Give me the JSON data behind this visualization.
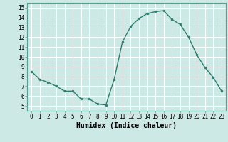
{
  "x": [
    0,
    1,
    2,
    3,
    4,
    5,
    6,
    7,
    8,
    9,
    10,
    11,
    12,
    13,
    14,
    15,
    16,
    17,
    18,
    19,
    20,
    21,
    22,
    23
  ],
  "y": [
    8.5,
    7.7,
    7.4,
    7.0,
    6.5,
    6.5,
    5.7,
    5.7,
    5.2,
    5.1,
    7.7,
    11.5,
    13.1,
    13.9,
    14.4,
    14.6,
    14.7,
    13.8,
    13.3,
    12.0,
    10.2,
    8.9,
    7.9,
    6.5
  ],
  "line_color": "#2e7d6e",
  "marker": "o",
  "marker_size": 2,
  "bg_color": "#cce9e5",
  "grid_color": "#ffffff",
  "xlabel": "Humidex (Indice chaleur)",
  "xlim": [
    -0.5,
    23.5
  ],
  "ylim": [
    4.5,
    15.5
  ],
  "yticks": [
    5,
    6,
    7,
    8,
    9,
    10,
    11,
    12,
    13,
    14,
    15
  ],
  "xticks": [
    0,
    1,
    2,
    3,
    4,
    5,
    6,
    7,
    8,
    9,
    10,
    11,
    12,
    13,
    14,
    15,
    16,
    17,
    18,
    19,
    20,
    21,
    22,
    23
  ],
  "tick_fontsize": 5.5,
  "label_fontsize": 7,
  "line_width": 1.0
}
